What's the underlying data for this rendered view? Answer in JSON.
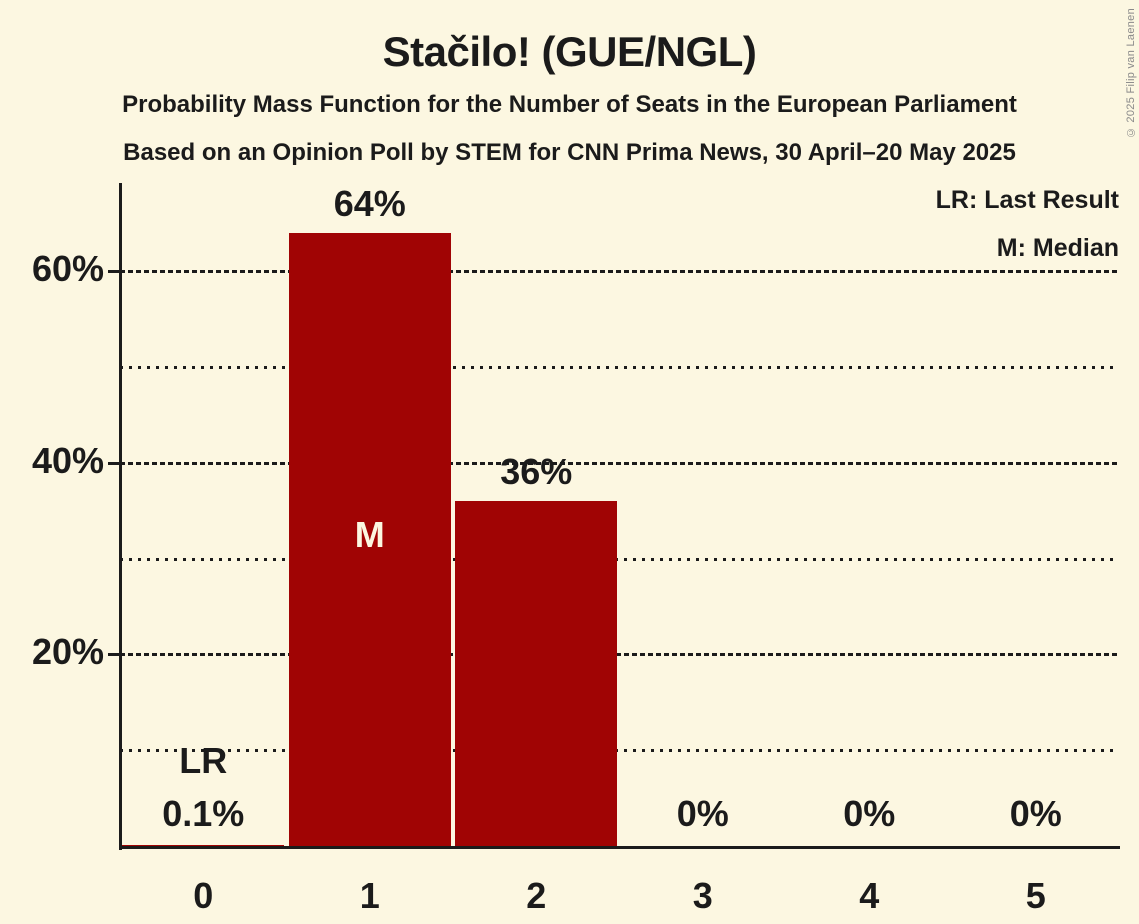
{
  "header": {
    "title": "Stačilo! (GUE/NGL)",
    "subtitle1": "Probability Mass Function for the Number of Seats in the European Parliament",
    "subtitle2": "Based on an Opinion Poll by STEM for CNN Prima News, 30 April–20 May 2025"
  },
  "legend": {
    "lr": "LR: Last Result",
    "m": "M: Median"
  },
  "copyright": "© 2025 Filip van Laenen",
  "chart_data": {
    "type": "bar",
    "title": "Stačilo! (GUE/NGL)",
    "subtitle": "Probability Mass Function for the Number of Seats in the European Parliament",
    "source_note": "Based on an Opinion Poll by STEM for CNN Prima News, 30 April–20 May 2025",
    "categories": [
      "0",
      "1",
      "2",
      "3",
      "4",
      "5"
    ],
    "values": [
      0.1,
      64,
      36,
      0,
      0,
      0
    ],
    "bar_labels": [
      "0.1%",
      "64%",
      "36%",
      "0%",
      "0%",
      "0%"
    ],
    "median_category": "1",
    "last_result_category": "0",
    "annotations": [
      {
        "text": "LR",
        "category_index": 0
      },
      {
        "text": "M",
        "category_index": 1
      }
    ],
    "legend": [
      "LR: Last Result",
      "M: Median"
    ],
    "y_ticks": [
      {
        "value": 20,
        "label": "20%"
      },
      {
        "value": 40,
        "label": "40%"
      },
      {
        "value": 60,
        "label": "60%"
      }
    ],
    "major_gridlines": [
      20,
      40,
      60
    ],
    "minor_gridlines": [
      10,
      30,
      50
    ],
    "ylim": [
      0,
      69.3
    ],
    "grid": true,
    "legend_position": "top-right",
    "colors": {
      "bar": "#a00404",
      "background": "#fcf7e1",
      "text": "#1b1b1b",
      "label_inside_bar": "#fcf7e1",
      "copyright_text": "#8a8a8a"
    }
  }
}
